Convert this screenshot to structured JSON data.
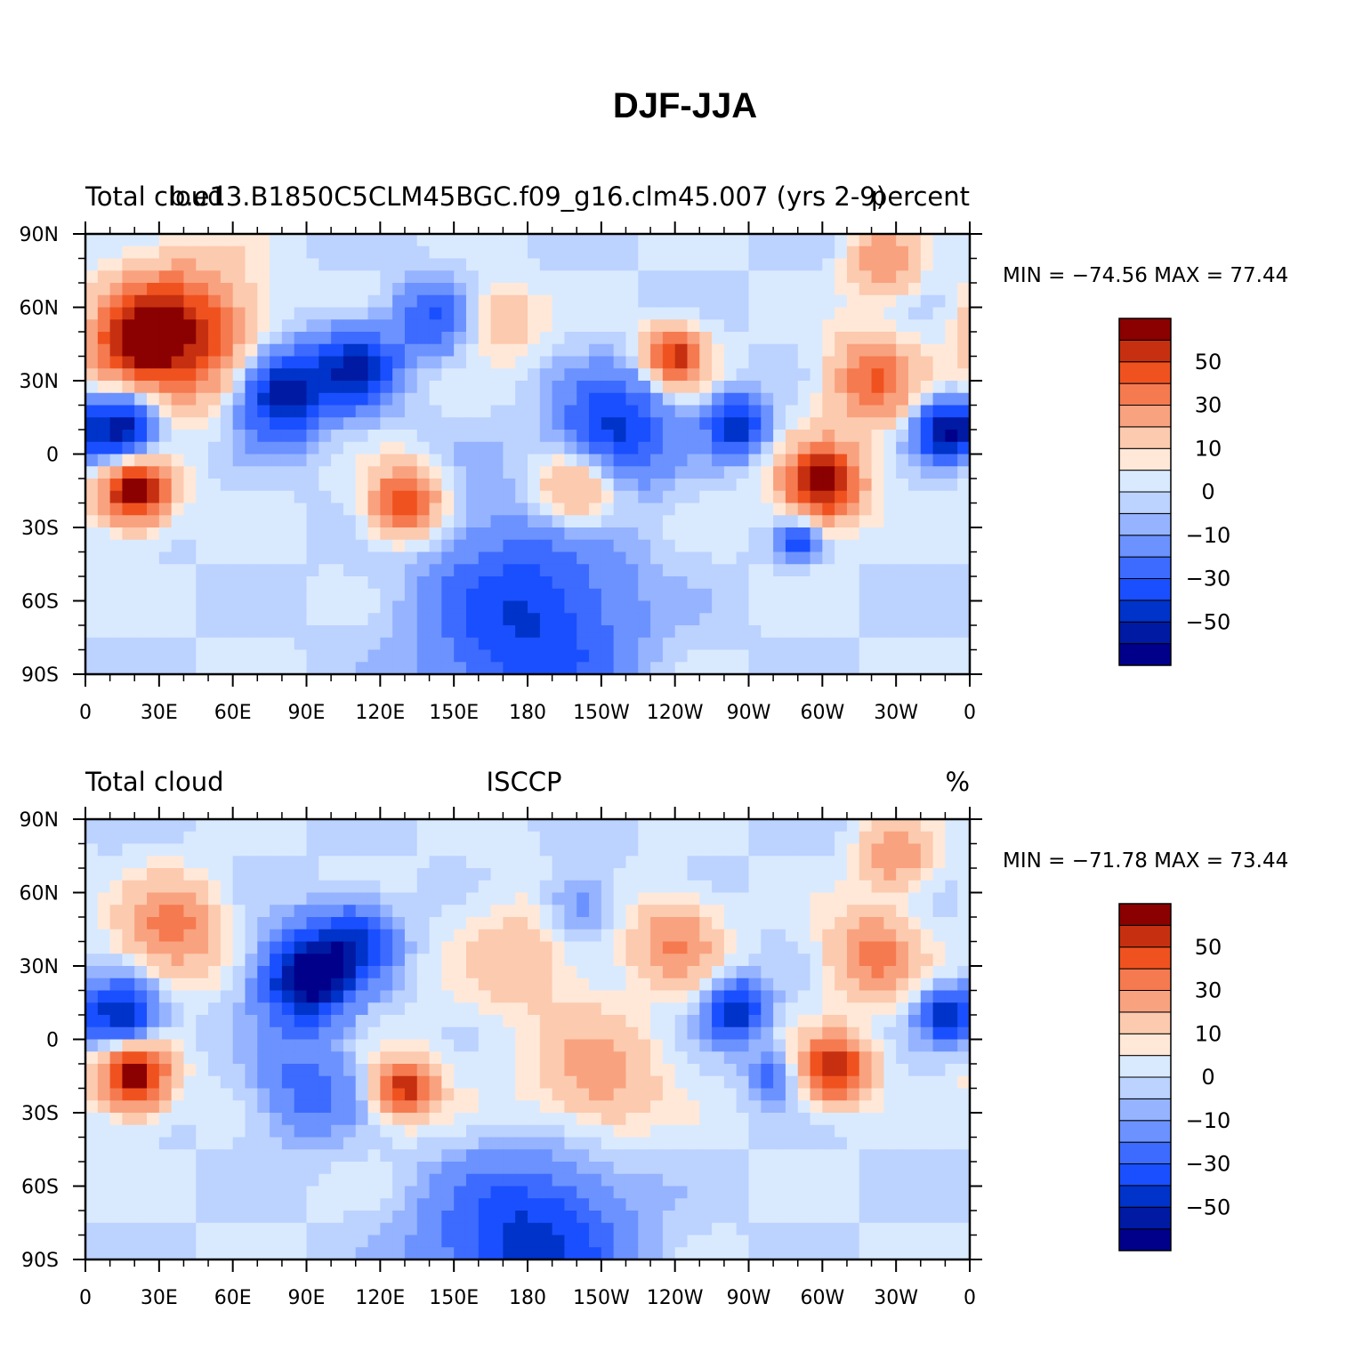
{
  "title": "DJF-JJA",
  "colorbar": {
    "colors": [
      "#00008b",
      "#001aa3",
      "#0033c9",
      "#1a4fff",
      "#3d6bff",
      "#6b92ff",
      "#95b3ff",
      "#bcd2ff",
      "#d9eaff",
      "#ffe8d8",
      "#fccaaf",
      "#f9a27f",
      "#f57a50",
      "#f0521f",
      "#c63010",
      "#8b0000"
    ],
    "labels": [
      "50",
      "30",
      "10",
      "0",
      "−10",
      "−30",
      "−50"
    ]
  },
  "chart_data": [
    {
      "type": "heatmap",
      "panel_id": "top",
      "left_title": "Total cloud",
      "center_title": "b.e13.B1850C5CLM45BGC.f09_g16.clm45.007 (yrs 2-9)",
      "right_title": "percent",
      "min_max_text": "MIN = −74.56 MAX =  77.44",
      "x_ticks": [
        "0",
        "30E",
        "60E",
        "90E",
        "120E",
        "150E",
        "180",
        "150W",
        "120W",
        "90W",
        "60W",
        "30W",
        "0"
      ],
      "y_ticks": [
        "90N",
        "60N",
        "30N",
        "0",
        "30S",
        "60S",
        "90S"
      ],
      "xlim": [
        0,
        360
      ],
      "ylim": [
        -90,
        90
      ],
      "contour_levels": [
        -70,
        -60,
        -50,
        -40,
        -30,
        -20,
        -10,
        -5,
        0,
        5,
        10,
        20,
        30,
        40,
        50,
        60,
        70
      ],
      "field_min": -74.56,
      "field_max": 77.44,
      "anomalies": [
        {
          "lon": 20,
          "lat": -15,
          "value": 72,
          "r": 14
        },
        {
          "lon": 300,
          "lat": -12,
          "value": 68,
          "r": 16
        },
        {
          "lon": 130,
          "lat": -20,
          "value": 55,
          "r": 14
        },
        {
          "lon": 40,
          "lat": 50,
          "value": 55,
          "r": 28
        },
        {
          "lon": 20,
          "lat": 45,
          "value": 45,
          "r": 18
        },
        {
          "lon": 240,
          "lat": 40,
          "value": 55,
          "r": 12
        },
        {
          "lon": 320,
          "lat": 30,
          "value": 40,
          "r": 18
        },
        {
          "lon": 200,
          "lat": -15,
          "value": 35,
          "r": 18
        },
        {
          "lon": 325,
          "lat": 78,
          "value": 30,
          "r": 14
        },
        {
          "lon": 170,
          "lat": 55,
          "value": 20,
          "r": 14
        },
        {
          "lon": 15,
          "lat": 10,
          "value": -65,
          "r": 14
        },
        {
          "lon": 80,
          "lat": 25,
          "value": -60,
          "r": 18
        },
        {
          "lon": 110,
          "lat": 35,
          "value": -50,
          "r": 16
        },
        {
          "lon": 215,
          "lat": 10,
          "value": -45,
          "r": 22
        },
        {
          "lon": 265,
          "lat": 12,
          "value": -50,
          "r": 12
        },
        {
          "lon": 350,
          "lat": 10,
          "value": -60,
          "r": 12
        },
        {
          "lon": 290,
          "lat": -35,
          "value": -40,
          "r": 8
        },
        {
          "lon": 180,
          "lat": -55,
          "value": -20,
          "r": 40
        },
        {
          "lon": 180,
          "lat": -80,
          "value": -25,
          "r": 40
        },
        {
          "lon": 140,
          "lat": 55,
          "value": -30,
          "r": 15
        }
      ]
    },
    {
      "type": "heatmap",
      "panel_id": "bottom",
      "left_title": "Total cloud",
      "center_title": "ISCCP",
      "right_title": "%",
      "min_max_text": "MIN = −71.78 MAX =  73.44",
      "x_ticks": [
        "0",
        "30E",
        "60E",
        "90E",
        "120E",
        "150E",
        "180",
        "150W",
        "120W",
        "90W",
        "60W",
        "30W",
        "0"
      ],
      "y_ticks": [
        "90N",
        "60N",
        "30N",
        "0",
        "30S",
        "60S",
        "90S"
      ],
      "xlim": [
        0,
        360
      ],
      "ylim": [
        -90,
        90
      ],
      "contour_levels": [
        -70,
        -60,
        -50,
        -40,
        -30,
        -20,
        -10,
        -5,
        0,
        5,
        10,
        20,
        30,
        40,
        50,
        60,
        70
      ],
      "field_min": -71.78,
      "field_max": 73.44,
      "anomalies": [
        {
          "lon": 20,
          "lat": -15,
          "value": 70,
          "r": 14
        },
        {
          "lon": 305,
          "lat": -12,
          "value": 60,
          "r": 14
        },
        {
          "lon": 130,
          "lat": -20,
          "value": 55,
          "r": 12
        },
        {
          "lon": 35,
          "lat": 45,
          "value": 35,
          "r": 20
        },
        {
          "lon": 240,
          "lat": 40,
          "value": 30,
          "r": 18
        },
        {
          "lon": 320,
          "lat": 35,
          "value": 35,
          "r": 18
        },
        {
          "lon": 330,
          "lat": 75,
          "value": 30,
          "r": 14
        },
        {
          "lon": 210,
          "lat": -15,
          "value": 25,
          "r": 22
        },
        {
          "lon": 180,
          "lat": -55,
          "value": 15,
          "r": 45
        },
        {
          "lon": 180,
          "lat": 35,
          "value": 15,
          "r": 28
        },
        {
          "lon": 15,
          "lat": 10,
          "value": -55,
          "r": 14
        },
        {
          "lon": 90,
          "lat": 25,
          "value": -70,
          "r": 18
        },
        {
          "lon": 110,
          "lat": 40,
          "value": -40,
          "r": 16
        },
        {
          "lon": 265,
          "lat": 12,
          "value": -50,
          "r": 12
        },
        {
          "lon": 350,
          "lat": 10,
          "value": -50,
          "r": 10
        },
        {
          "lon": 180,
          "lat": -80,
          "value": -55,
          "r": 40
        },
        {
          "lon": 90,
          "lat": -20,
          "value": -25,
          "r": 20
        },
        {
          "lon": 200,
          "lat": 55,
          "value": -20,
          "r": 15
        },
        {
          "lon": 280,
          "lat": -15,
          "value": -25,
          "r": 10
        }
      ]
    }
  ]
}
